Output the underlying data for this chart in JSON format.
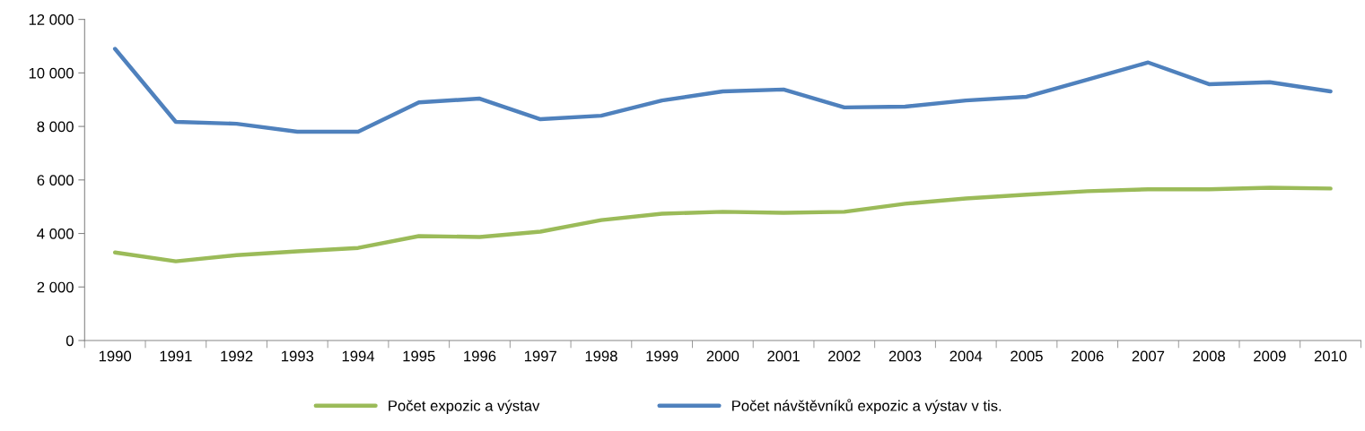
{
  "chart_data": {
    "type": "line",
    "categories": [
      "1990",
      "1991",
      "1992",
      "1993",
      "1994",
      "1995",
      "1996",
      "1997",
      "1998",
      "1999",
      "2000",
      "2001",
      "2002",
      "2003",
      "2004",
      "2005",
      "2006",
      "2007",
      "2008",
      "2009",
      "2010"
    ],
    "series": [
      {
        "name": "Počet expozic a výstav",
        "color": "#9bbb59",
        "values": [
          3290,
          2960,
          3190,
          3330,
          3460,
          3900,
          3870,
          4070,
          4500,
          4740,
          4810,
          4770,
          4810,
          5110,
          5310,
          5450,
          5580,
          5650,
          5650,
          5710,
          5680
        ]
      },
      {
        "name": "Počet návštěvníků expozic a výstav v tis.",
        "color": "#4f81bd",
        "values": [
          10900,
          8170,
          8100,
          7800,
          7800,
          8900,
          9040,
          8270,
          8400,
          8970,
          9310,
          9380,
          8710,
          8740,
          8970,
          9110,
          9750,
          10390,
          9580,
          9650,
          9310
        ]
      }
    ],
    "ylim": [
      0,
      12000
    ],
    "yticks": [
      {
        "value": 0,
        "label": "0"
      },
      {
        "value": 2000,
        "label": "2 000"
      },
      {
        "value": 4000,
        "label": "4 000"
      },
      {
        "value": 6000,
        "label": "6 000"
      },
      {
        "value": 8000,
        "label": "8 000"
      },
      {
        "value": 10000,
        "label": "10 000"
      },
      {
        "value": 12000,
        "label": "12 000"
      }
    ],
    "grid": false,
    "legend": "bottom",
    "marker": "none",
    "line_style": "solid"
  }
}
